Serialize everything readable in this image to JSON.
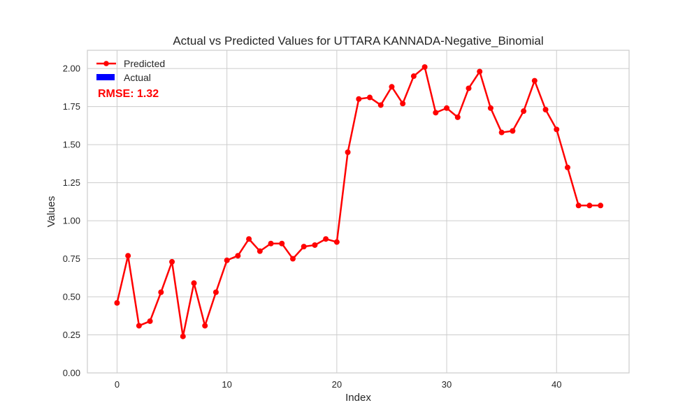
{
  "chart_data": {
    "type": "line",
    "title": "Actual vs Predicted Values for UTTARA KANNADA-Negative_Binomial",
    "xlabel": "Index",
    "ylabel": "Values",
    "xlim": [
      -2.7,
      46.6
    ],
    "ylim": [
      0,
      2.12
    ],
    "xticks": [
      0,
      10,
      20,
      30,
      40
    ],
    "yticks": [
      0.0,
      0.25,
      0.5,
      0.75,
      1.0,
      1.25,
      1.5,
      1.75,
      2.0
    ],
    "xtick_labels": [
      "0",
      "10",
      "20",
      "30",
      "40"
    ],
    "ytick_labels": [
      "0.00",
      "0.25",
      "0.50",
      "0.75",
      "1.00",
      "1.25",
      "1.50",
      "1.75",
      "2.00"
    ],
    "grid": true,
    "legend_position": "top-left",
    "series": [
      {
        "name": "Predicted",
        "color": "#ff0000",
        "marker": "circle",
        "x": [
          0,
          1,
          2,
          3,
          4,
          5,
          6,
          7,
          8,
          9,
          10,
          11,
          12,
          13,
          14,
          15,
          16,
          17,
          18,
          19,
          20,
          21,
          22,
          23,
          24,
          25,
          26,
          27,
          28,
          29,
          30,
          31,
          32,
          33,
          34,
          35,
          36,
          37,
          38,
          39,
          40,
          41,
          42,
          43,
          44
        ],
        "values": [
          0.46,
          0.77,
          0.31,
          0.34,
          0.53,
          0.73,
          0.24,
          0.59,
          0.31,
          0.53,
          0.74,
          0.77,
          0.88,
          0.8,
          0.85,
          0.85,
          0.75,
          0.83,
          0.84,
          0.88,
          0.86,
          1.45,
          1.8,
          1.81,
          1.76,
          1.88,
          1.77,
          1.95,
          2.01,
          1.71,
          1.74,
          1.68,
          1.87,
          1.98,
          1.74,
          1.58,
          1.59,
          1.72,
          1.92,
          1.73,
          1.6,
          1.35,
          1.1,
          1.1,
          1.1
        ]
      },
      {
        "name": "Actual",
        "color": "#0000ff",
        "x": [],
        "values": []
      }
    ],
    "annotations": [
      {
        "text": "RMSE: 1.32",
        "color": "#ff0000",
        "position": "top-left"
      }
    ]
  }
}
